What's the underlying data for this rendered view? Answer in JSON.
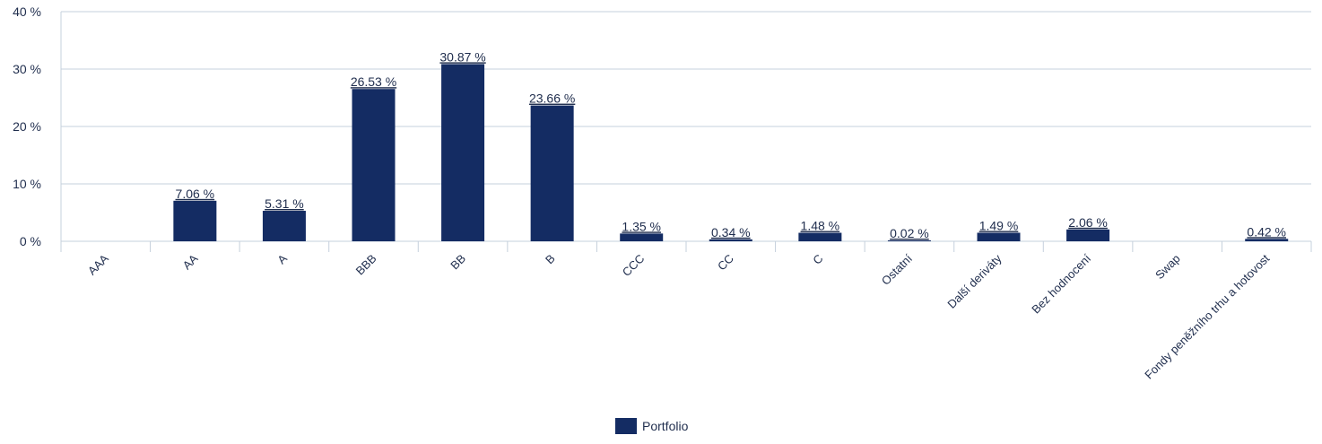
{
  "chart_data": {
    "type": "bar",
    "categories": [
      "AAA",
      "AA",
      "A",
      "BBB",
      "BB",
      "B",
      "CCC",
      "CC",
      "C",
      "Ostatní",
      "Další deriváty",
      "Bez hodnocení",
      "Swap",
      "Fondy peněžního trhu a hotovost"
    ],
    "series": [
      {
        "name": "Portfolio",
        "values": [
          null,
          7.06,
          5.31,
          26.53,
          30.87,
          23.66,
          1.35,
          0.34,
          1.48,
          0.02,
          1.49,
          2.06,
          null,
          0.42
        ],
        "labels": [
          "",
          "7.06 %",
          "5.31 %",
          "26.53 %",
          "30.87 %",
          "23.66 %",
          "1.35 %",
          "0.34 %",
          "1.48 %",
          "0.02 %",
          "1.49 %",
          "2.06 %",
          "",
          "0.42 %"
        ]
      }
    ],
    "yticks": [
      0,
      10,
      20,
      30,
      40
    ],
    "ytick_labels": [
      "0 %",
      "10 %",
      "20 %",
      "30 %",
      "40 %"
    ],
    "ylim": [
      0,
      40
    ],
    "grid": true,
    "legend_position": "bottom-center",
    "colors": {
      "bar": "#142c63",
      "grid": "#c5d0dc",
      "text": "#1f2d4d"
    }
  }
}
